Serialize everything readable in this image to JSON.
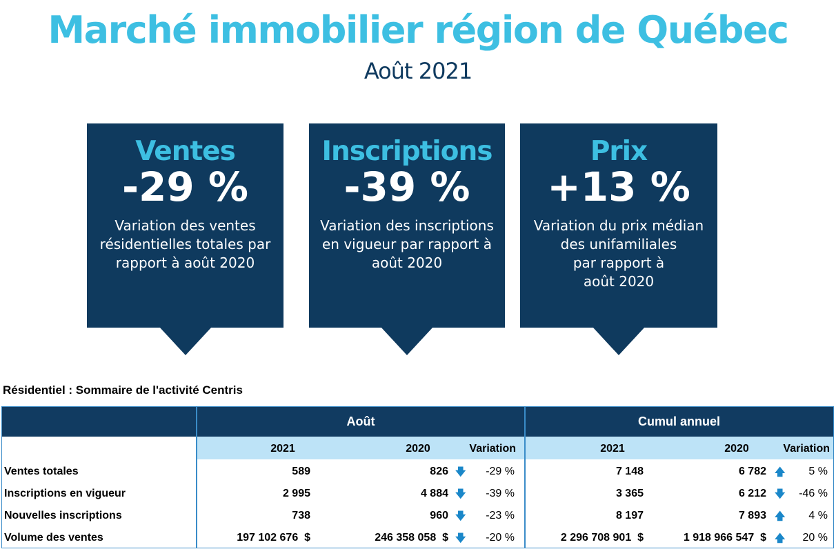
{
  "header": {
    "title": "Marché immobilier région de Québec",
    "subtitle": "Août 2021"
  },
  "cards": [
    {
      "heading": "Ventes",
      "value": "-29 %",
      "description": "Variation des ventes\nrésidentielles totales par\nrapport à août 2020"
    },
    {
      "heading": "Inscriptions",
      "value": "-39 %",
      "description": "Variation des inscriptions\nen vigueur par rapport à\naoût 2020"
    },
    {
      "heading": "Prix",
      "value": "+13 %",
      "description": "Variation du prix médian\ndes unifamiliales\npar rapport à\naoût 2020"
    }
  ],
  "colors": {
    "accent": "#3dbfe2",
    "navy": "#0f3a5e",
    "light_blue": "#bde3f7",
    "arrow": "#1a87c9"
  },
  "table": {
    "title": "Résidentiel : Sommaire de l'activité Centris",
    "groups": [
      "Août",
      "Cumul annuel"
    ],
    "columns": [
      "2021",
      "2020",
      "Variation",
      "2021",
      "2020",
      "Variation"
    ],
    "rows": [
      {
        "label": "Ventes totales",
        "a2021": "589",
        "a2020": "826",
        "a_dir": "down",
        "a_var": "-29 %",
        "c2021": "7 148",
        "c2020": "6 782",
        "c_dir": "up",
        "c_var": "5 %"
      },
      {
        "label": "Inscriptions en vigueur",
        "a2021": "2 995",
        "a2020": "4 884",
        "a_dir": "down",
        "a_var": "-39 %",
        "c2021": "3 365",
        "c2020": "6 212",
        "c_dir": "down",
        "c_var": "-46 %"
      },
      {
        "label": "Nouvelles inscriptions",
        "a2021": "738",
        "a2020": "960",
        "a_dir": "down",
        "a_var": "-23 %",
        "c2021": "8 197",
        "c2020": "7 893",
        "c_dir": "up",
        "c_var": "4 %"
      },
      {
        "label": "Volume des ventes",
        "a2021": "197 102 676  $",
        "a2020": "246 358 058  $",
        "a_dir": "down",
        "a_var": "-20 %",
        "c2021": "2 296 708 901  $",
        "c2020": "1 918 966 547  $",
        "c_dir": "up",
        "c_var": "20 %"
      }
    ]
  }
}
